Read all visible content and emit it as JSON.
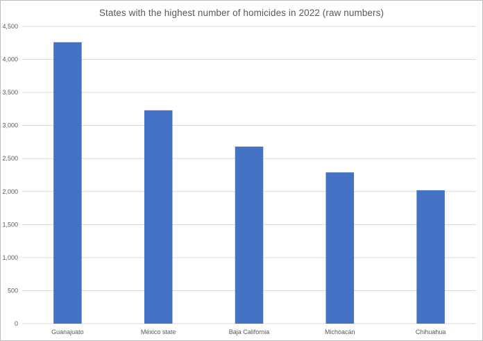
{
  "chart_data": {
    "type": "bar",
    "title": "States with the highest number of homicides in 2022 (raw numbers)",
    "categories": [
      "Guanajuato",
      "México state",
      "Baja California",
      "Michoacán",
      "Chihuahua"
    ],
    "values": [
      4260,
      3230,
      2680,
      2290,
      2020
    ],
    "ylim": [
      0,
      4500
    ],
    "yticks": [
      0,
      500,
      1000,
      1500,
      2000,
      2500,
      3000,
      3500,
      4000,
      4500
    ],
    "ytick_labels": [
      "0",
      "500",
      "1,000",
      "1,500",
      "2,000",
      "2,500",
      "3,000",
      "3,500",
      "4,000",
      "4,500"
    ],
    "xlabel": "",
    "ylabel": "",
    "grid": true,
    "legend": false,
    "bar_color": "#4472c4",
    "grid_color": "#d9d9d9"
  }
}
